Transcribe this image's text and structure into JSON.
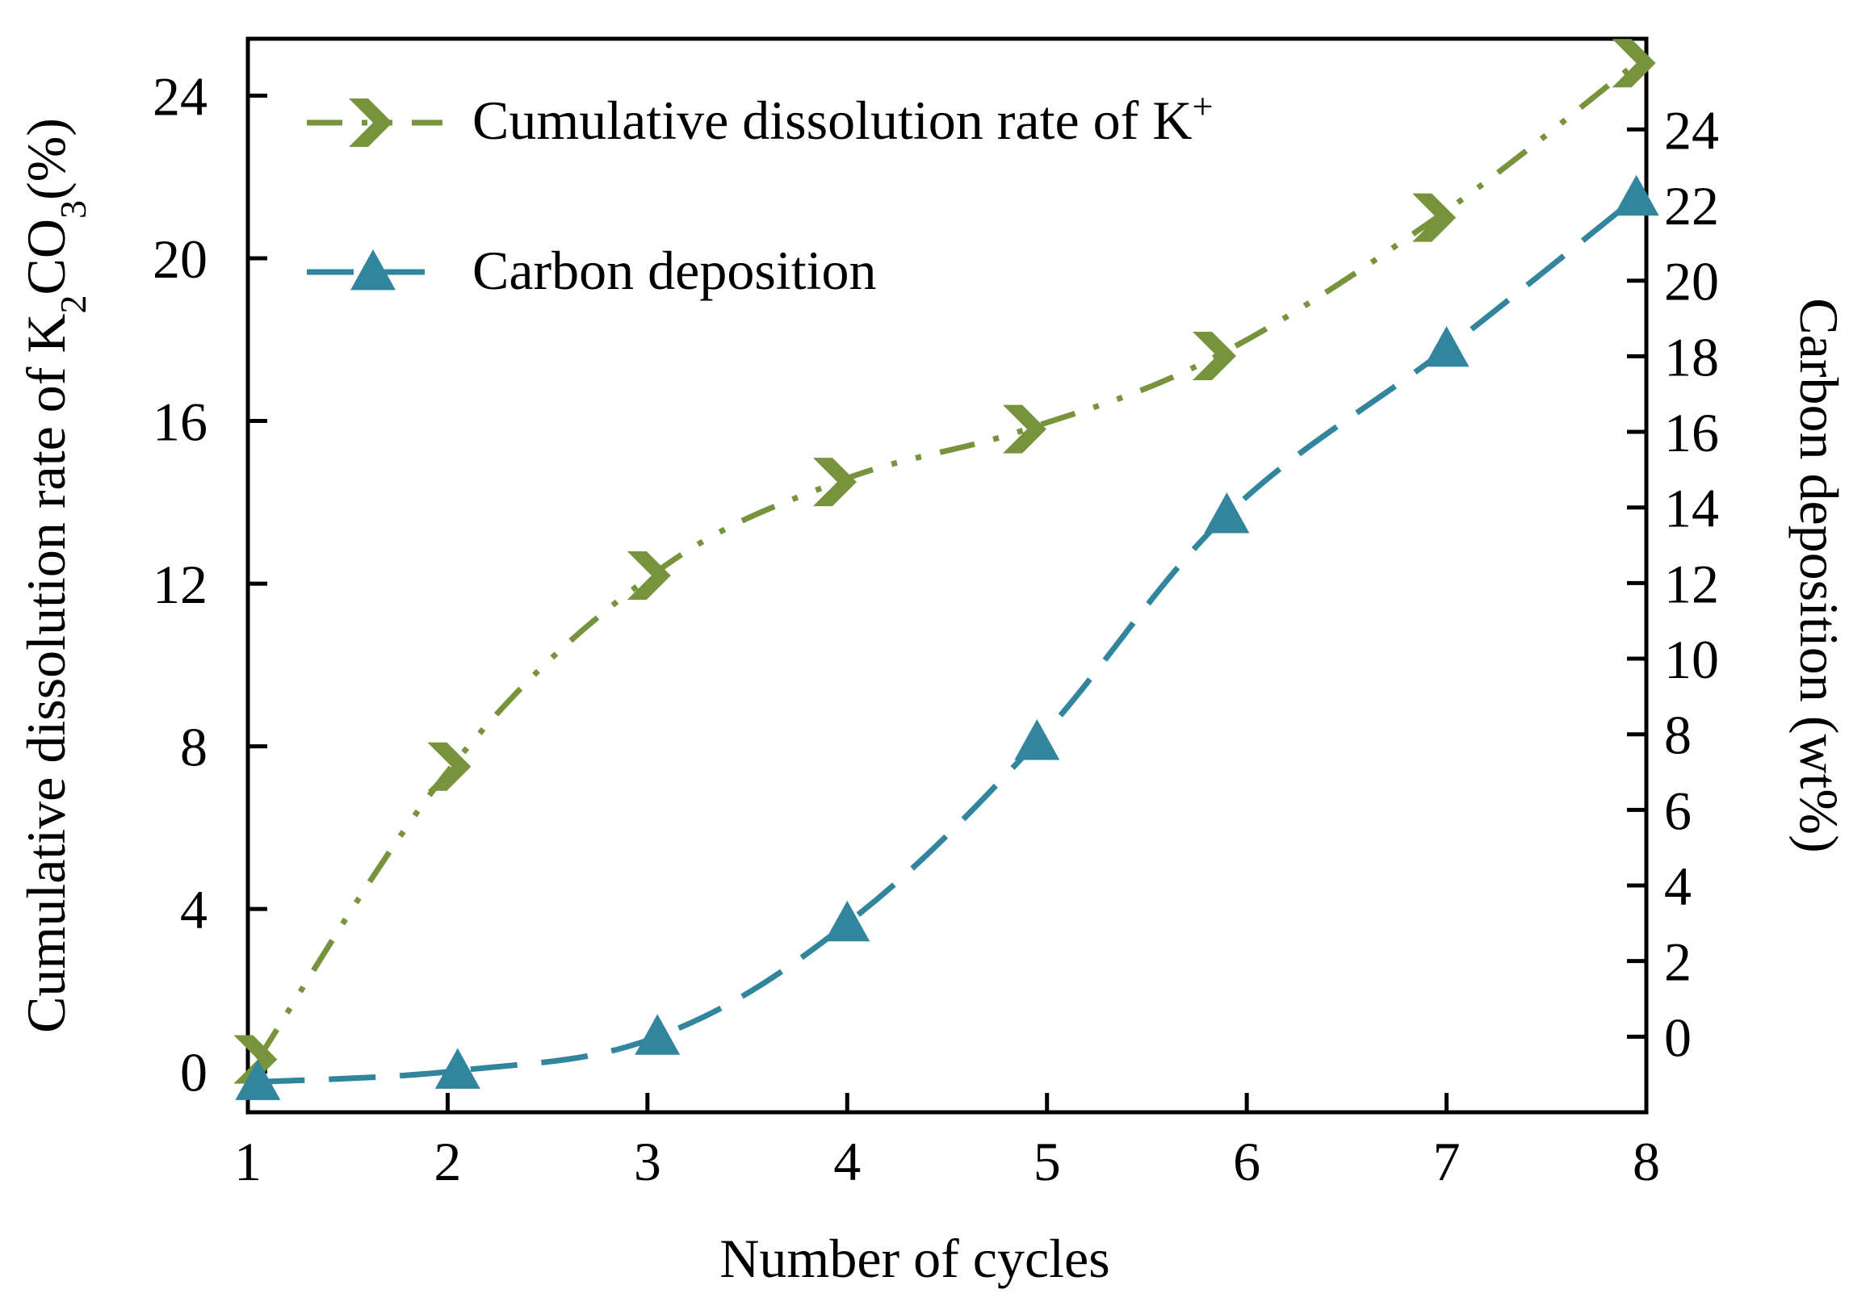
{
  "chart_data": {
    "type": "line",
    "title": "",
    "xlabel": "Number of cycles",
    "ylabel_left": "Cumulative dissolution rate of K₂CO₃(%)",
    "ylabel_left_parts": {
      "before": "Cumulative dissolution rate of K",
      "sub1": "2",
      "middle": "CO",
      "sub2": "3",
      "after": "(%)"
    },
    "ylabel_right": "Carbon deposition (wt%)",
    "x": [
      1,
      2,
      3,
      4,
      5,
      6,
      7,
      8
    ],
    "x_ticks": [
      "1",
      "2",
      "3",
      "4",
      "5",
      "6",
      "7",
      "8"
    ],
    "xlim": [
      1,
      8
    ],
    "ylim_left": [
      -1,
      25.4
    ],
    "yticks_left": [
      "0",
      "4",
      "8",
      "12",
      "16",
      "20",
      "24"
    ],
    "ylim_right": [
      -2,
      26.4
    ],
    "yticks_right": [
      "0",
      "2",
      "4",
      "6",
      "8",
      "10",
      "12",
      "14",
      "16",
      "18",
      "20",
      "22",
      "24"
    ],
    "series": [
      {
        "name": "Cumulative dissolution rate of K",
        "name_sup": "+",
        "axis": "left",
        "color": "#77933c",
        "marker": "chevron-right",
        "linestyle": "dash-dot-dot",
        "points": [
          {
            "x": 1.05,
            "y": 0.3
          },
          {
            "x": 2.02,
            "y": 7.5
          },
          {
            "x": 3.02,
            "y": 12.2
          },
          {
            "x": 3.95,
            "y": 14.5
          },
          {
            "x": 4.9,
            "y": 15.8
          },
          {
            "x": 5.85,
            "y": 17.6
          },
          {
            "x": 6.95,
            "y": 21.0
          },
          {
            "x": 7.95,
            "y": 24.8
          }
        ]
      },
      {
        "name": "Carbon deposition",
        "axis": "right",
        "color": "#31859c",
        "marker": "triangle",
        "linestyle": "long-dash",
        "points": [
          {
            "x": 1.05,
            "y": -1.2
          },
          {
            "x": 2.05,
            "y": -0.9
          },
          {
            "x": 3.05,
            "y": 0
          },
          {
            "x": 4.0,
            "y": 3.0
          },
          {
            "x": 4.95,
            "y": 7.8
          },
          {
            "x": 5.9,
            "y": 13.8
          },
          {
            "x": 7.0,
            "y": 18.2
          },
          {
            "x": 7.95,
            "y": 22.2
          }
        ]
      }
    ],
    "legend_position": "top-left",
    "grid": false
  }
}
